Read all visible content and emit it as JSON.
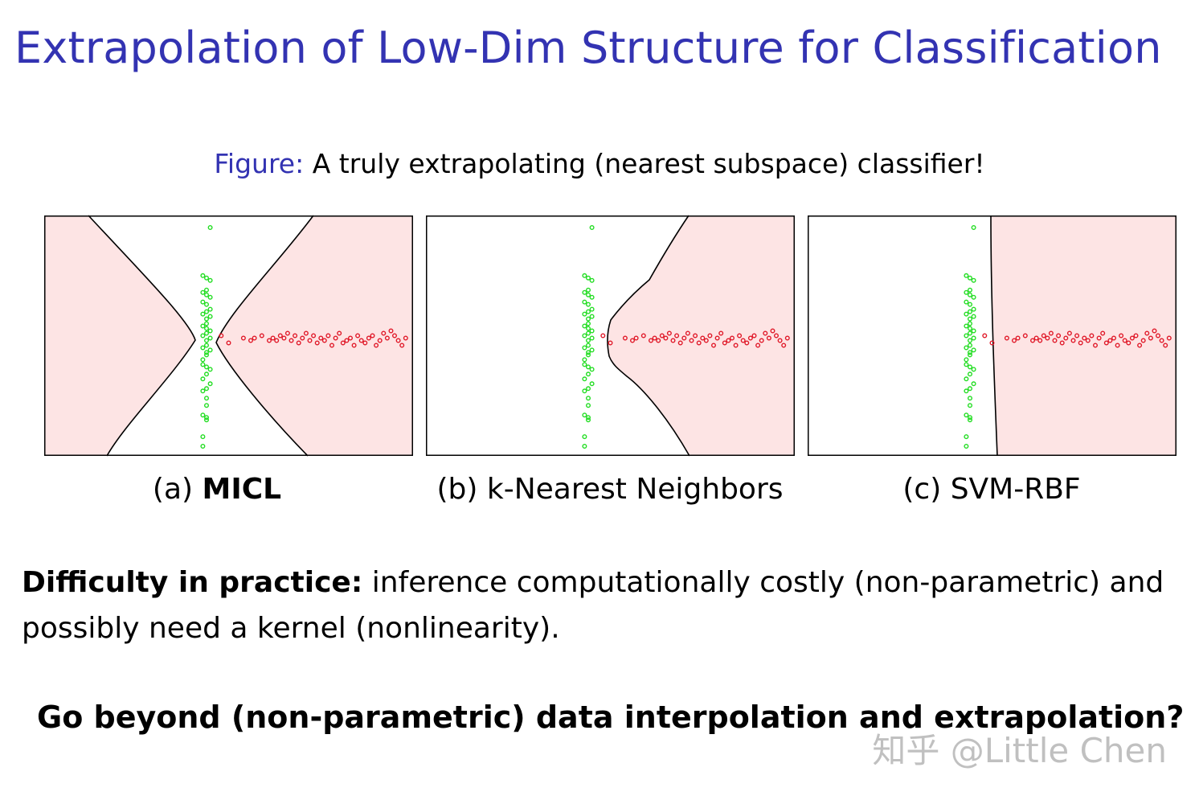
{
  "slide": {
    "title": "Extrapolation of Low-Dim Structure for Classification",
    "figure_caption_lead": "Figure:",
    "figure_caption_text": "A truly extrapolating (nearest subspace) classifier!",
    "body_lead": "Difficulty in practice:",
    "body_text": "inference computationally costly (non-parametric) and possibly need a kernel (nonlinearity).",
    "question": "Go beyond (non-parametric) data interpolation and extrapolation?",
    "watermark": "知乎 @Little Chen"
  },
  "panels": [
    {
      "id": "a",
      "prefix": "(a)",
      "label": "MICL",
      "bold": true
    },
    {
      "id": "b",
      "prefix": "(b)",
      "label": "k-Nearest Neighbors",
      "bold": false
    },
    {
      "id": "c",
      "prefix": "(c)",
      "label": "SVM-RBF",
      "bold": false
    }
  ],
  "chart_data": {
    "type": "scatter",
    "xlim": [
      0,
      1
    ],
    "ylim": [
      0,
      1
    ],
    "colors": {
      "class_vertical": "#22dd22",
      "class_horizontal": "#e01828",
      "region_fill": "#fde4e4",
      "boundary": "#000000"
    },
    "series": [
      {
        "x": [
          0.43,
          0.43,
          0.44,
          0.44,
          0.43,
          0.44,
          0.44,
          0.43,
          0.44,
          0.45,
          0.43,
          0.44,
          0.45,
          0.44,
          0.43,
          0.43,
          0.44,
          0.44,
          0.45,
          0.43,
          0.44,
          0.44,
          0.45,
          0.43,
          0.44,
          0.45,
          0.44,
          0.43,
          0.44,
          0.44,
          0.45,
          0.43,
          0.44,
          0.45,
          0.44,
          0.43,
          0.45,
          0.44,
          0.43,
          0.44,
          0.45,
          0.44,
          0.43,
          0.45
        ],
        "y": [
          0.04,
          0.08,
          0.15,
          0.16,
          0.17,
          0.21,
          0.24,
          0.27,
          0.28,
          0.3,
          0.32,
          0.34,
          0.36,
          0.37,
          0.38,
          0.4,
          0.42,
          0.43,
          0.44,
          0.45,
          0.46,
          0.48,
          0.49,
          0.5,
          0.51,
          0.52,
          0.53,
          0.54,
          0.55,
          0.57,
          0.58,
          0.59,
          0.6,
          0.61,
          0.63,
          0.64,
          0.66,
          0.67,
          0.68,
          0.69,
          0.73,
          0.74,
          0.75,
          0.95
        ]
      },
      {
        "x": [
          0.48,
          0.5,
          0.54,
          0.56,
          0.57,
          0.59,
          0.61,
          0.62,
          0.63,
          0.64,
          0.65,
          0.66,
          0.67,
          0.68,
          0.69,
          0.7,
          0.71,
          0.72,
          0.73,
          0.74,
          0.75,
          0.76,
          0.77,
          0.78,
          0.79,
          0.8,
          0.81,
          0.82,
          0.83,
          0.84,
          0.85,
          0.86,
          0.87,
          0.88,
          0.89,
          0.9,
          0.91,
          0.92,
          0.93,
          0.94,
          0.95,
          0.96,
          0.97,
          0.98
        ],
        "y": [
          0.5,
          0.47,
          0.49,
          0.48,
          0.49,
          0.5,
          0.48,
          0.49,
          0.48,
          0.5,
          0.49,
          0.51,
          0.48,
          0.5,
          0.47,
          0.49,
          0.51,
          0.48,
          0.5,
          0.47,
          0.49,
          0.48,
          0.5,
          0.46,
          0.49,
          0.51,
          0.47,
          0.48,
          0.49,
          0.46,
          0.5,
          0.48,
          0.47,
          0.49,
          0.5,
          0.46,
          0.48,
          0.51,
          0.49,
          0.52,
          0.5,
          0.48,
          0.46,
          0.49
        ]
      }
    ]
  }
}
